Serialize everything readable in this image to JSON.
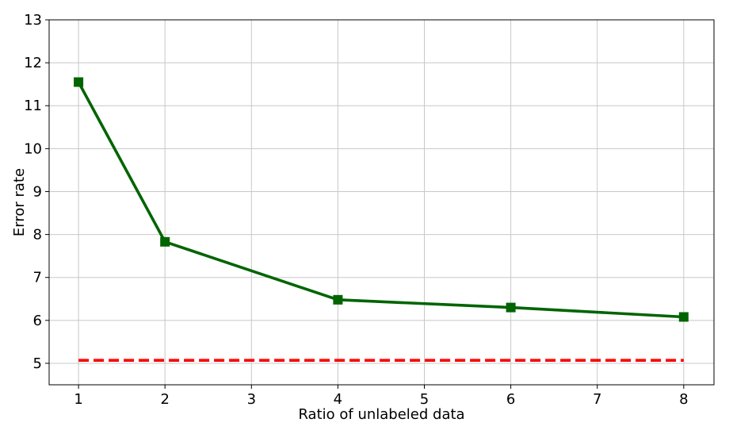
{
  "chart_data": {
    "type": "line",
    "title": "",
    "xlabel": "Ratio of unlabeled data",
    "ylabel": "Error rate",
    "xlim": [
      0.66,
      8.35
    ],
    "ylim": [
      4.5,
      13
    ],
    "xticks": [
      1,
      2,
      3,
      4,
      5,
      6,
      7,
      8
    ],
    "yticks": [
      5,
      6,
      7,
      8,
      9,
      10,
      11,
      12,
      13
    ],
    "grid": true,
    "series": [
      {
        "x": [
          1,
          2,
          4,
          6,
          8
        ],
        "y": [
          11.55,
          7.83,
          6.48,
          6.3,
          6.08
        ],
        "color": "#006400",
        "marker": "square",
        "line_style": "solid"
      },
      {
        "x": [
          1,
          8
        ],
        "y": [
          5.07,
          5.07
        ],
        "color": "#ff0000",
        "marker": "none",
        "line_style": "dashed"
      }
    ]
  }
}
